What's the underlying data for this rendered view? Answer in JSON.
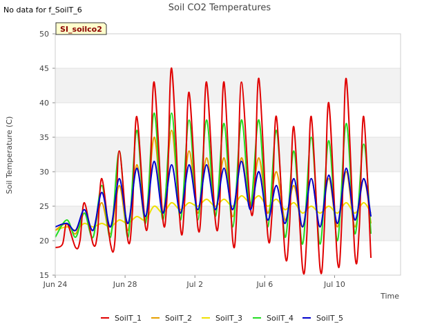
{
  "chart_data": {
    "type": "line",
    "title": "Soil CO2 Temperatures",
    "note": "No data for f_SoilT_6",
    "badge": "SI_soilco2",
    "xlabel": "Time",
    "ylabel": "Soil Temperature (C)",
    "ylim": [
      15,
      50
    ],
    "yticks": [
      15,
      20,
      25,
      30,
      35,
      40,
      45,
      50
    ],
    "xlim": [
      "2023-06-24",
      "2023-07-12"
    ],
    "xticks": [
      {
        "date": "2023-06-24",
        "label": "Jun 24"
      },
      {
        "date": "2023-06-28",
        "label": "Jun 28"
      },
      {
        "date": "2023-07-02",
        "label": "Jul 2"
      },
      {
        "date": "2023-07-06",
        "label": "Jul 6"
      },
      {
        "date": "2023-07-10",
        "label": "Jul 10"
      }
    ],
    "grid": "alternating horizontal bands",
    "legend_position": "bottom",
    "series": [
      {
        "name": "SoilT_1",
        "color": "#e00000",
        "x": [
          "2023-06-24T00:00",
          "2023-06-24T10:00",
          "2023-06-24T16:00",
          "2023-06-25T04:00",
          "2023-06-25T10:00",
          "2023-06-25T16:00",
          "2023-06-26T04:00",
          "2023-06-26T10:00",
          "2023-06-26T16:00",
          "2023-06-27T04:00",
          "2023-06-27T10:00",
          "2023-06-27T16:00",
          "2023-06-28T04:00",
          "2023-06-28T10:00",
          "2023-06-28T16:00",
          "2023-06-29T04:00",
          "2023-06-29T10:00",
          "2023-06-29T16:00",
          "2023-06-30T04:00",
          "2023-06-30T10:00",
          "2023-06-30T16:00",
          "2023-07-01T04:00",
          "2023-07-01T10:00",
          "2023-07-01T16:00",
          "2023-07-02T04:00",
          "2023-07-02T10:00",
          "2023-07-02T16:00",
          "2023-07-03T04:00",
          "2023-07-03T10:00",
          "2023-07-03T16:00",
          "2023-07-04T04:00",
          "2023-07-04T10:00",
          "2023-07-04T16:00",
          "2023-07-05T04:00",
          "2023-07-05T10:00",
          "2023-07-05T16:00",
          "2023-07-06T04:00",
          "2023-07-06T10:00",
          "2023-07-06T16:00",
          "2023-07-07T04:00",
          "2023-07-07T10:00",
          "2023-07-07T16:00",
          "2023-07-08T04:00",
          "2023-07-08T10:00",
          "2023-07-08T16:00",
          "2023-07-09T04:00",
          "2023-07-09T10:00",
          "2023-07-09T16:00",
          "2023-07-10T04:00",
          "2023-07-10T10:00",
          "2023-07-10T16:00",
          "2023-07-11T04:00",
          "2023-07-11T10:00",
          "2023-07-11T16:00",
          "2023-07-12T02:00"
        ],
        "values": [
          19,
          19.5,
          22.5,
          19,
          20,
          25.5,
          19.5,
          21,
          29,
          19.5,
          20,
          33,
          20,
          24,
          38,
          22,
          27,
          43,
          23,
          27,
          45,
          22,
          26,
          41.5,
          22,
          27,
          43,
          23,
          25,
          43,
          20,
          25,
          43,
          25,
          27,
          43.5,
          21,
          24,
          38,
          18,
          22,
          36.5,
          16,
          21,
          38,
          16,
          22,
          40,
          17,
          23,
          43.5,
          18,
          22,
          38,
          17.5
        ]
      },
      {
        "name": "SoilT_2",
        "color": "#e69f00",
        "x": [
          "2023-06-24T00:00",
          "2023-06-24T16:00",
          "2023-06-25T04:00",
          "2023-06-25T16:00",
          "2023-06-26T04:00",
          "2023-06-26T16:00",
          "2023-06-27T04:00",
          "2023-06-27T16:00",
          "2023-06-28T04:00",
          "2023-06-28T16:00",
          "2023-06-29T04:00",
          "2023-06-29T16:00",
          "2023-06-30T04:00",
          "2023-06-30T16:00",
          "2023-07-01T04:00",
          "2023-07-01T16:00",
          "2023-07-02T04:00",
          "2023-07-02T16:00",
          "2023-07-03T04:00",
          "2023-07-03T16:00",
          "2023-07-04T04:00",
          "2023-07-04T16:00",
          "2023-07-05T04:00",
          "2023-07-05T16:00",
          "2023-07-06T04:00",
          "2023-07-06T16:00",
          "2023-07-07T04:00",
          "2023-07-07T16:00",
          "2023-07-08T04:00",
          "2023-07-08T16:00",
          "2023-07-09T04:00",
          "2023-07-09T16:00",
          "2023-07-10T04:00",
          "2023-07-10T16:00",
          "2023-07-11T04:00",
          "2023-07-11T16:00",
          "2023-07-12T02:00"
        ],
        "values": [
          21.5,
          22.5,
          21,
          24,
          21.5,
          25.5,
          21,
          28,
          21.5,
          31,
          23,
          35,
          24,
          36,
          24,
          33,
          24,
          32,
          24.5,
          32,
          23.5,
          32,
          25,
          32,
          24,
          30,
          23,
          28,
          22,
          29,
          22,
          29,
          22,
          30,
          22,
          29,
          22.5
        ]
      },
      {
        "name": "SoilT_3",
        "color": "#f0e000",
        "x": [
          "2023-06-24T00:00",
          "2023-06-24T16:00",
          "2023-06-25T04:00",
          "2023-06-25T16:00",
          "2023-06-26T04:00",
          "2023-06-26T16:00",
          "2023-06-27T04:00",
          "2023-06-27T16:00",
          "2023-06-28T04:00",
          "2023-06-28T16:00",
          "2023-06-29T04:00",
          "2023-06-29T16:00",
          "2023-06-30T04:00",
          "2023-06-30T16:00",
          "2023-07-01T04:00",
          "2023-07-01T16:00",
          "2023-07-02T04:00",
          "2023-07-02T16:00",
          "2023-07-03T04:00",
          "2023-07-03T16:00",
          "2023-07-04T04:00",
          "2023-07-04T16:00",
          "2023-07-05T04:00",
          "2023-07-05T16:00",
          "2023-07-06T04:00",
          "2023-07-06T16:00",
          "2023-07-07T04:00",
          "2023-07-07T16:00",
          "2023-07-08T04:00",
          "2023-07-08T16:00",
          "2023-07-09T04:00",
          "2023-07-09T16:00",
          "2023-07-10T04:00",
          "2023-07-10T16:00",
          "2023-07-11T04:00",
          "2023-07-11T16:00",
          "2023-07-12T02:00"
        ],
        "values": [
          21.5,
          22,
          21.5,
          22.5,
          22,
          22.5,
          22,
          23,
          22.5,
          23.5,
          23,
          25,
          24,
          25.5,
          24.5,
          25.5,
          25,
          26,
          25,
          26,
          25,
          26.5,
          25.5,
          26.5,
          25,
          26,
          24.5,
          25.5,
          24,
          25,
          24,
          25,
          24,
          25.5,
          24,
          25.5,
          24
        ]
      },
      {
        "name": "SoilT_4",
        "color": "#22dd22",
        "x": [
          "2023-06-24T00:00",
          "2023-06-24T16:00",
          "2023-06-25T04:00",
          "2023-06-25T16:00",
          "2023-06-26T04:00",
          "2023-06-26T16:00",
          "2023-06-27T04:00",
          "2023-06-27T16:00",
          "2023-06-28T04:00",
          "2023-06-28T16:00",
          "2023-06-29T04:00",
          "2023-06-29T16:00",
          "2023-06-30T04:00",
          "2023-06-30T16:00",
          "2023-07-01T04:00",
          "2023-07-01T16:00",
          "2023-07-02T04:00",
          "2023-07-02T16:00",
          "2023-07-03T04:00",
          "2023-07-03T16:00",
          "2023-07-04T04:00",
          "2023-07-04T16:00",
          "2023-07-05T04:00",
          "2023-07-05T16:00",
          "2023-07-06T04:00",
          "2023-07-06T16:00",
          "2023-07-07T04:00",
          "2023-07-07T16:00",
          "2023-07-08T04:00",
          "2023-07-08T16:00",
          "2023-07-09T04:00",
          "2023-07-09T16:00",
          "2023-07-10T04:00",
          "2023-07-10T16:00",
          "2023-07-11T04:00",
          "2023-07-11T16:00",
          "2023-07-12T02:00"
        ],
        "values": [
          20.5,
          23,
          20.5,
          24,
          20.5,
          28,
          20.5,
          33,
          20.5,
          36,
          22.5,
          38.5,
          23,
          38.5,
          23,
          37.5,
          23,
          37.5,
          23.5,
          37,
          22,
          37.5,
          25,
          37.5,
          22,
          36,
          20.5,
          33,
          19.5,
          35,
          19.5,
          34.5,
          20,
          37,
          21,
          34,
          21
        ]
      },
      {
        "name": "SoilT_5",
        "color": "#0000cc",
        "x": [
          "2023-06-24T00:00",
          "2023-06-24T16:00",
          "2023-06-25T04:00",
          "2023-06-25T16:00",
          "2023-06-26T04:00",
          "2023-06-26T16:00",
          "2023-06-27T04:00",
          "2023-06-27T16:00",
          "2023-06-28T04:00",
          "2023-06-28T16:00",
          "2023-06-29T04:00",
          "2023-06-29T16:00",
          "2023-06-30T04:00",
          "2023-06-30T16:00",
          "2023-07-01T04:00",
          "2023-07-01T16:00",
          "2023-07-02T04:00",
          "2023-07-02T16:00",
          "2023-07-03T04:00",
          "2023-07-03T16:00",
          "2023-07-04T04:00",
          "2023-07-04T16:00",
          "2023-07-05T04:00",
          "2023-07-05T16:00",
          "2023-07-06T04:00",
          "2023-07-06T16:00",
          "2023-07-07T04:00",
          "2023-07-07T16:00",
          "2023-07-08T04:00",
          "2023-07-08T16:00",
          "2023-07-09T04:00",
          "2023-07-09T16:00",
          "2023-07-10T04:00",
          "2023-07-10T16:00",
          "2023-07-11T04:00",
          "2023-07-11T16:00",
          "2023-07-12T02:00"
        ],
        "values": [
          22,
          22.5,
          21.5,
          24.5,
          21.5,
          27,
          22,
          29,
          22.5,
          30.5,
          23.5,
          31.5,
          24,
          31,
          24,
          31,
          24.5,
          31,
          24.5,
          30.5,
          24.5,
          31.5,
          24.5,
          30,
          23,
          28,
          22.5,
          29,
          22,
          29,
          22,
          29.5,
          22.5,
          30.5,
          23,
          29,
          23.5
        ]
      }
    ]
  }
}
